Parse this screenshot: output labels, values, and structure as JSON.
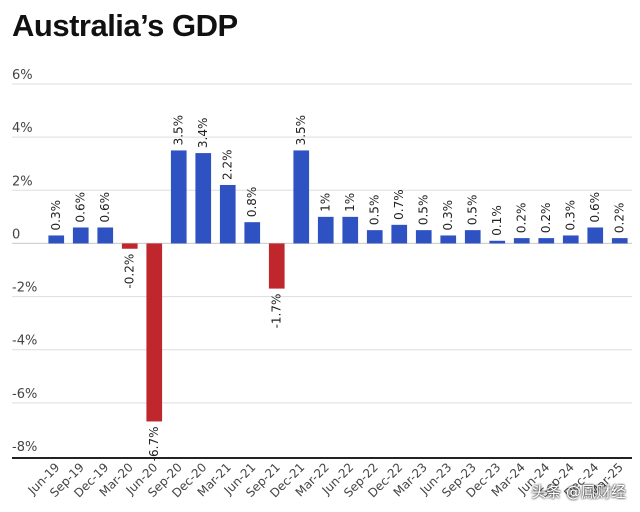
{
  "chart_data": {
    "type": "bar",
    "title": "Australia’s GDP",
    "xlabel": "",
    "ylabel": "",
    "ylim": [
      -8,
      6
    ],
    "yticks": [
      6,
      4,
      2,
      0,
      -2,
      -4,
      -6,
      -8
    ],
    "ytick_labels": [
      "6%",
      "4%",
      "2%",
      "0",
      "-2%",
      "-4%",
      "-6%",
      "-8%"
    ],
    "grid": true,
    "categories": [
      "Jun-19",
      "Sep-19",
      "Dec-19",
      "Mar-20",
      "Jun-20",
      "Sep-20",
      "Dec-20",
      "Mar-21",
      "Jun-21",
      "Sep-21",
      "Dec-21",
      "Mar-22",
      "Jun-22",
      "Sep-22",
      "Dec-22",
      "Mar-23",
      "Jun-23",
      "Sep-23",
      "Dec-23",
      "Mar-24",
      "Jun-24",
      "Sep-24",
      "Dec-24",
      "Mar-25"
    ],
    "values": [
      0.3,
      0.6,
      0.6,
      -0.2,
      -6.7,
      3.5,
      3.4,
      2.2,
      0.8,
      -1.7,
      3.5,
      1,
      1,
      0.5,
      0.7,
      0.5,
      0.3,
      0.5,
      0.1,
      0.2,
      0.2,
      0.3,
      0.6,
      0.2
    ],
    "data_labels": [
      "0.3%",
      "0.6%",
      "0.6%",
      "-0.2%",
      "-6.7%",
      "3.5%",
      "3.4%",
      "2.2%",
      "0.8%",
      "-1.7%",
      "3.5%",
      "1%",
      "1%",
      "0.5%",
      "0.7%",
      "0.5%",
      "0.3%",
      "0.5%",
      "0.1%",
      "0.2%",
      "0.2%",
      "0.3%",
      "0.6%",
      "0.2%"
    ],
    "colors": {
      "positive": "#2f52c3",
      "negative": "#c0272d",
      "grid": "#dddddd",
      "axis": "#222222"
    }
  },
  "watermark": "头条 @鳳财经"
}
